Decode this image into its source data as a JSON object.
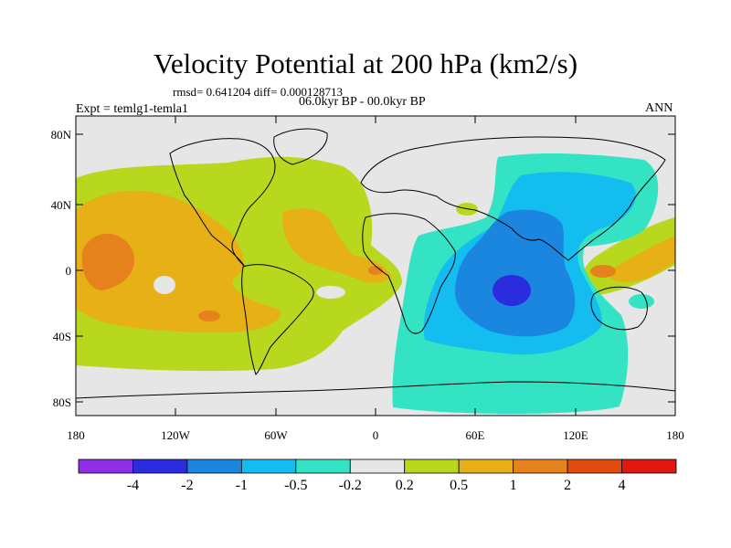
{
  "title": "Velocity Potential at 200 hPa (km2/s)",
  "stats_line": "rmsd= 0.641204  diff= 0.000128713",
  "left_label": "Expt = temlg1-temla1",
  "center_label": "06.0kyr BP - 00.0kyr BP",
  "right_label": "ANN",
  "lat_ticks": [
    "80N",
    "40N",
    "0",
    "40S",
    "80S"
  ],
  "lon_ticks": [
    "180",
    "120W",
    "60W",
    "0",
    "60E",
    "120E",
    "180"
  ],
  "colorbar": {
    "colors": [
      "#8e2fe6",
      "#2b2be0",
      "#1a86e0",
      "#13bdef",
      "#33e3c4",
      "#e6e6e6",
      "#b8d81d",
      "#e6b016",
      "#e6821c",
      "#e04c0d",
      "#e0180d"
    ],
    "labels": [
      "-4",
      "-2",
      "-1",
      "-0.5",
      "-0.2",
      "0.2",
      "0.5",
      "1",
      "2",
      "4"
    ]
  }
}
